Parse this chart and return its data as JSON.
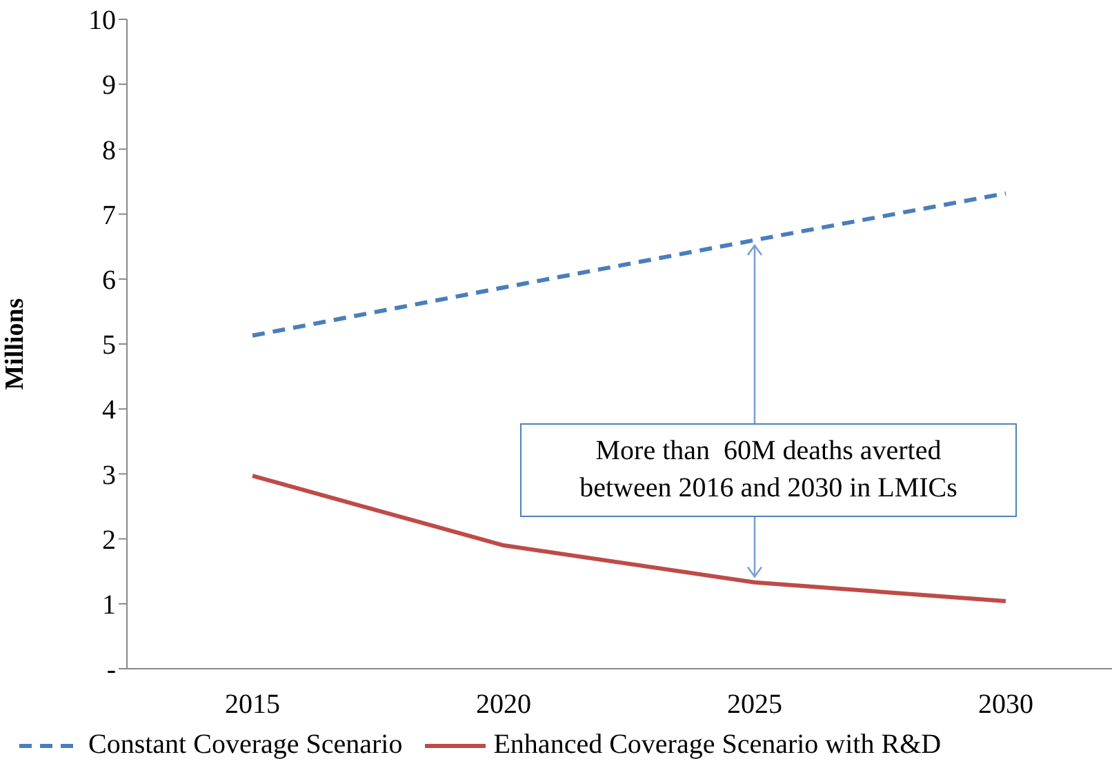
{
  "chart_data": {
    "type": "line",
    "ylabel": "Millions",
    "categories": [
      "2015",
      "2020",
      "2025",
      "2030"
    ],
    "series": [
      {
        "name": "Constant Coverage Scenario",
        "color": "#4a7ebb",
        "line_style": "dashed",
        "values": [
          5.13,
          5.87,
          6.6,
          7.32
        ]
      },
      {
        "name": "Enhanced Coverage Scenario with R&D",
        "color": "#be4b48",
        "line_style": "solid",
        "values": [
          2.97,
          1.9,
          1.33,
          1.04
        ]
      }
    ],
    "ylim": [
      0,
      10
    ],
    "yticks": [
      {
        "value": 0,
        "label": "-"
      },
      1,
      2,
      3,
      4,
      5,
      6,
      7,
      8,
      9,
      10
    ],
    "grid": false,
    "legend": "bottom",
    "marker": "none",
    "annotations": [
      "More than  60M deaths averted\nbetween 2016 and 2030 in LMICs"
    ]
  }
}
